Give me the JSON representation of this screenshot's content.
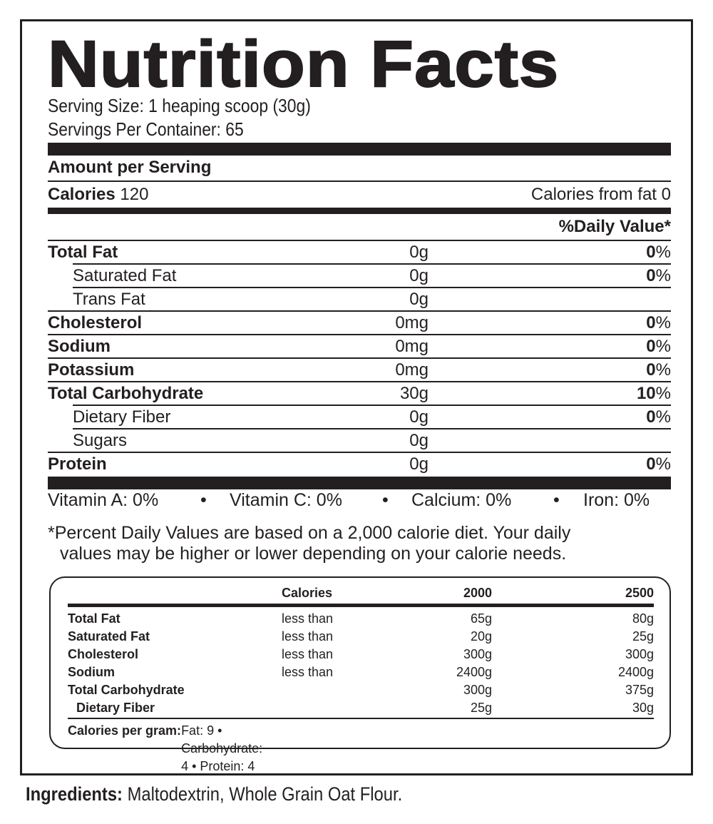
{
  "title": "Nutrition Facts",
  "serving_size": "Serving Size: 1 heaping scoop (30g)",
  "servings_per_container": "Servings Per Container: 65",
  "amount_per_serving": "Amount per Serving",
  "calories": {
    "label": "Calories",
    "value": "120",
    "from_fat": "Calories from fat 0"
  },
  "daily_value_header": "%Daily Value*",
  "nutrients": [
    {
      "name": "Total Fat",
      "amount": "0g",
      "dv": "0",
      "bold": true,
      "indent": false
    },
    {
      "name": "Saturated Fat",
      "amount": "0g",
      "dv": "0",
      "bold": false,
      "indent": true
    },
    {
      "name": "Trans Fat",
      "amount": "0g",
      "dv": "",
      "bold": false,
      "indent": true
    },
    {
      "name": "Cholesterol",
      "amount": "0mg",
      "dv": "0",
      "bold": true,
      "indent": false
    },
    {
      "name": "Sodium",
      "amount": "0mg",
      "dv": "0",
      "bold": true,
      "indent": false
    },
    {
      "name": "Potassium",
      "amount": "0mg",
      "dv": "0",
      "bold": true,
      "indent": false
    },
    {
      "name": "Total Carbohydrate",
      "amount": "30g",
      "dv": "10",
      "bold": true,
      "indent": false
    },
    {
      "name": "Dietary Fiber",
      "amount": "0g",
      "dv": "0",
      "bold": false,
      "indent": true
    },
    {
      "name": "Sugars",
      "amount": "0g",
      "dv": "",
      "bold": false,
      "indent": true
    },
    {
      "name": "Protein",
      "amount": "0g",
      "dv": "0",
      "bold": true,
      "indent": false
    }
  ],
  "percent_sign": "%",
  "vitamins": [
    "Vitamin A: 0%",
    "Vitamin C: 0%",
    "Calcium: 0%",
    "Iron: 0%"
  ],
  "bullet": "•",
  "footnote": [
    "*Percent Daily Values are based on a 2,000 calorie diet. Your daily",
    "values may be higher or lower depending on your calorie needs."
  ],
  "dv_table": {
    "headers": [
      "",
      "Calories",
      "2000",
      "2500"
    ],
    "rows": [
      [
        "Total Fat",
        "less than",
        "65g",
        "80g"
      ],
      [
        "Saturated Fat",
        "less than",
        "20g",
        "25g"
      ],
      [
        "Cholesterol",
        "less than",
        "300g",
        "300g"
      ],
      [
        "Sodium",
        "less than",
        "2400g",
        "2400g"
      ],
      [
        "Total Carbohydrate",
        "",
        "300g",
        "375g"
      ],
      [
        " Dietary Fiber",
        "",
        "25g",
        "30g"
      ]
    ],
    "calories_per_gram_label": "Calories per gram:",
    "calories_per_gram": "Fat: 9 • Carbohydrate: 4 • Protein: 4"
  },
  "ingredients": {
    "label": "Ingredients:",
    "text": "Maltodextrin, Whole Grain Oat Flour."
  }
}
